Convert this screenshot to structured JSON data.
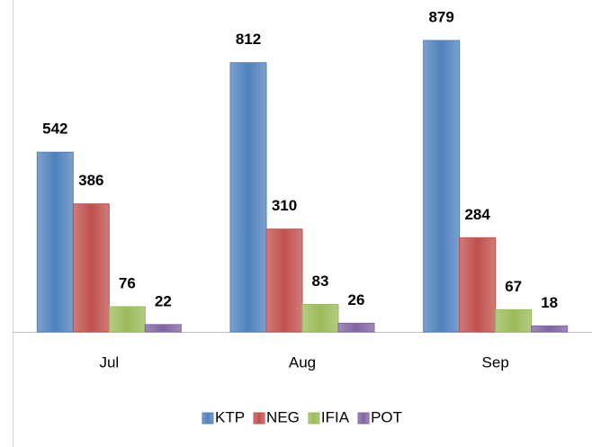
{
  "chart_data": {
    "type": "bar",
    "categories": [
      "Jul",
      "Aug",
      "Sep"
    ],
    "series": [
      {
        "name": "KTP",
        "color": "#4f81bd",
        "values": [
          542,
          812,
          879
        ]
      },
      {
        "name": "NEG",
        "color": "#c0504d",
        "values": [
          386,
          310,
          284
        ]
      },
      {
        "name": "IFIA",
        "color": "#9bbb59",
        "values": [
          76,
          83,
          67
        ]
      },
      {
        "name": "POT",
        "color": "#8064a2",
        "values": [
          22,
          26,
          18
        ]
      }
    ],
    "legend": "bottom"
  }
}
